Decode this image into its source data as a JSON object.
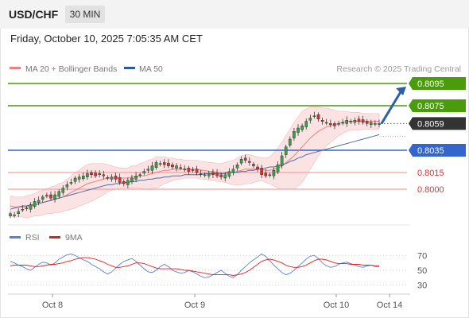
{
  "header": {
    "symbol": "USD/CHF",
    "interval": "30 MIN",
    "datetime": "Friday, October 10, 2025 7:05:35 AM CET"
  },
  "legend": {
    "items": [
      {
        "label": "MA 20 + Bollinger Bands",
        "color": "#f08080"
      },
      {
        "label": "MA 50",
        "color": "#2a5b9a"
      }
    ],
    "credit": "Research © 2025 Trading Central"
  },
  "rsi_legend": {
    "items": [
      {
        "label": "RSI",
        "color": "#5b7fd6"
      },
      {
        "label": "9MA",
        "color": "#e02020"
      }
    ]
  },
  "colors": {
    "resistance": "#4a9c0a",
    "support": "#3366cc",
    "target_support": "#e03030",
    "last_price": "#333333",
    "arrow": "#2d5fa8"
  },
  "chart_data": [
    {
      "type": "candlestick",
      "title": "",
      "x_ticks": [
        "Oct 8",
        "Oct 9",
        "Oct 10",
        "Oct 14"
      ],
      "ylim": [
        0.7975,
        0.81
      ],
      "series": [
        {
          "name": "MA 20 + Bollinger Bands"
        },
        {
          "name": "MA 50"
        }
      ],
      "close": [
        0.7978,
        0.7977,
        0.798,
        0.7982,
        0.7983,
        0.7986,
        0.7989,
        0.799,
        0.7993,
        0.7994,
        0.7992,
        0.7995,
        0.7998,
        0.8001,
        0.8004,
        0.8006,
        0.801,
        0.8011,
        0.8012,
        0.8014,
        0.8013,
        0.8012,
        0.8014,
        0.8012,
        0.801,
        0.8011,
        0.8009,
        0.8006,
        0.8005,
        0.8008,
        0.801,
        0.8012,
        0.8013,
        0.8016,
        0.8018,
        0.8021,
        0.8024,
        0.8023,
        0.8022,
        0.8021,
        0.802,
        0.8021,
        0.8019,
        0.8018,
        0.8016,
        0.8017,
        0.8015,
        0.8014,
        0.8013,
        0.8014,
        0.8013,
        0.8012,
        0.8011,
        0.8013,
        0.8016,
        0.8018,
        0.8022,
        0.8027,
        0.8026,
        0.8024,
        0.8021,
        0.8018,
        0.8013,
        0.8012,
        0.8013,
        0.8017,
        0.8022,
        0.803,
        0.8038,
        0.8045,
        0.8052,
        0.8055,
        0.8057,
        0.8061,
        0.8064,
        0.8066,
        0.8063,
        0.8061,
        0.806,
        0.8058,
        0.8057,
        0.8059,
        0.806,
        0.8062,
        0.8061,
        0.8062,
        0.8061,
        0.806,
        0.8059,
        0.806,
        0.8059,
        0.8059
      ],
      "ma20": [
        0.7985,
        0.7984,
        0.7984,
        0.7984,
        0.7984,
        0.7985,
        0.7986,
        0.7987,
        0.7988,
        0.7989,
        0.799,
        0.7991,
        0.7992,
        0.7993,
        0.7995,
        0.7997,
        0.7999,
        0.8001,
        0.8003,
        0.8005,
        0.8006,
        0.8007,
        0.8008,
        0.8009,
        0.801,
        0.801,
        0.801,
        0.801,
        0.801,
        0.801,
        0.8011,
        0.8011,
        0.8012,
        0.8012,
        0.8013,
        0.8014,
        0.8015,
        0.8016,
        0.8017,
        0.8017,
        0.8018,
        0.8018,
        0.8018,
        0.8018,
        0.8018,
        0.8018,
        0.8018,
        0.8017,
        0.8017,
        0.8016,
        0.8016,
        0.8015,
        0.8015,
        0.8015,
        0.8015,
        0.8015,
        0.8016,
        0.8017,
        0.8018,
        0.8018,
        0.8018,
        0.8018,
        0.8018,
        0.8017,
        0.8017,
        0.8018,
        0.8019,
        0.8021,
        0.8024,
        0.8027,
        0.803,
        0.8034,
        0.8038,
        0.8042,
        0.8046,
        0.8049,
        0.8052,
        0.8054,
        0.8056,
        0.8057,
        0.8058,
        0.8059,
        0.806,
        0.8061,
        0.8061,
        0.8061,
        0.8061,
        0.8061,
        0.8061,
        0.8061,
        0.8061,
        0.8061
      ],
      "ma50": [
        0.7982,
        0.7983,
        0.7984,
        0.7985,
        0.7985,
        0.7986,
        0.7986,
        0.7987,
        0.7988,
        0.7989,
        0.799,
        0.7991,
        0.7992,
        0.7993,
        0.7994,
        0.7995,
        0.7996,
        0.7997,
        0.7998,
        0.7999,
        0.8,
        0.8001,
        0.8002,
        0.8003,
        0.8004,
        0.8004,
        0.8005,
        0.8005,
        0.8006,
        0.8006,
        0.8007,
        0.8007,
        0.8008,
        0.8008,
        0.8009,
        0.8009,
        0.801,
        0.801,
        0.8011,
        0.8011,
        0.8012,
        0.8012,
        0.8012,
        0.8013,
        0.8013,
        0.8013,
        0.8013,
        0.8013,
        0.8014,
        0.8014,
        0.8014,
        0.8014,
        0.8014,
        0.8014,
        0.8015,
        0.8015,
        0.8015,
        0.8016,
        0.8016,
        0.8017,
        0.8017,
        0.8018,
        0.8018,
        0.8019,
        0.802,
        0.802,
        0.8021,
        0.8022,
        0.8023,
        0.8025,
        0.8026,
        0.8028,
        0.8029,
        0.8031,
        0.8032,
        0.8033,
        0.8034,
        0.8035,
        0.8036,
        0.8037,
        0.8038,
        0.8039,
        0.804,
        0.8041,
        0.8042,
        0.8043,
        0.8044,
        0.8045,
        0.8046,
        0.8047,
        0.8048,
        0.8049
      ],
      "band_width": [
        0.0009,
        0.0009,
        0.0009,
        0.0009,
        0.001,
        0.001,
        0.001,
        0.0011,
        0.0011,
        0.0011,
        0.0012,
        0.0012,
        0.0013,
        0.0013,
        0.0014,
        0.0015,
        0.0016,
        0.0016,
        0.0017,
        0.0017,
        0.0017,
        0.0016,
        0.0015,
        0.0014,
        0.0012,
        0.0011,
        0.001,
        0.0009,
        0.0009,
        0.0009,
        0.001,
        0.001,
        0.0011,
        0.0012,
        0.0013,
        0.0013,
        0.0014,
        0.0013,
        0.0012,
        0.0011,
        0.001,
        0.0009,
        0.0009,
        0.0008,
        0.0008,
        0.0008,
        0.0008,
        0.0008,
        0.0008,
        0.0008,
        0.0008,
        0.0008,
        0.0008,
        0.0009,
        0.001,
        0.0011,
        0.0012,
        0.0013,
        0.0013,
        0.0013,
        0.0012,
        0.0011,
        0.001,
        0.0011,
        0.0012,
        0.0015,
        0.0018,
        0.0021,
        0.0024,
        0.0027,
        0.003,
        0.0031,
        0.0032,
        0.003,
        0.0028,
        0.0025,
        0.0022,
        0.0019,
        0.0017,
        0.0015,
        0.0013,
        0.0011,
        0.001,
        0.0009,
        0.0008,
        0.0008,
        0.0008,
        0.0007,
        0.0007,
        0.0007,
        0.0007,
        0.0007
      ],
      "levels": [
        {
          "value": 0.8095,
          "label": "0.8095",
          "kind": "resistance"
        },
        {
          "value": 0.8075,
          "label": "0.8075",
          "kind": "resistance"
        },
        {
          "value": 0.8059,
          "label": "0.8059",
          "kind": "last_price"
        },
        {
          "value": 0.8035,
          "label": "0.8035",
          "kind": "pivot"
        },
        {
          "value": 0.8015,
          "label": "0.8015",
          "kind": "support"
        },
        {
          "value": 0.8,
          "label": "0.8000",
          "kind": "support"
        }
      ],
      "target_arrow": {
        "from": 0.8059,
        "to": 0.8095
      }
    },
    {
      "type": "line",
      "title": "",
      "y_ticks": [
        70,
        50,
        30
      ],
      "ylim": [
        20,
        80
      ],
      "series": [
        {
          "name": "RSI",
          "values": [
            62,
            60,
            57,
            55,
            52,
            50,
            54,
            58,
            61,
            60,
            57,
            60,
            65,
            68,
            71,
            72,
            70,
            67,
            64,
            62,
            58,
            55,
            52,
            48,
            45,
            48,
            53,
            58,
            62,
            64,
            66,
            62,
            57,
            52,
            48,
            47,
            50,
            55,
            58,
            55,
            50,
            48,
            46,
            47,
            50,
            48,
            45,
            42,
            40,
            41,
            44,
            47,
            50,
            46,
            42,
            40,
            44,
            50,
            55,
            60,
            64,
            68,
            72,
            69,
            63,
            57,
            52,
            47,
            44,
            46,
            50,
            55,
            60,
            65,
            69,
            70,
            66,
            60,
            56,
            54,
            55,
            58,
            60,
            61,
            59,
            57,
            55,
            54,
            56,
            57,
            55,
            55
          ]
        },
        {
          "name": "9MA",
          "values": [
            56,
            57,
            57,
            57,
            57,
            56,
            55,
            55,
            56,
            57,
            58,
            58,
            59,
            60,
            62,
            63,
            65,
            66,
            67,
            67,
            66,
            65,
            63,
            61,
            58,
            56,
            54,
            54,
            55,
            56,
            58,
            60,
            60,
            59,
            57,
            55,
            53,
            52,
            52,
            52,
            52,
            52,
            51,
            50,
            50,
            49,
            48,
            47,
            46,
            45,
            44,
            44,
            44,
            44,
            44,
            43,
            44,
            45,
            47,
            50,
            54,
            58,
            62,
            64,
            65,
            64,
            62,
            60,
            57,
            55,
            54,
            54,
            55,
            57,
            60,
            63,
            65,
            65,
            64,
            62,
            60,
            59,
            59,
            59,
            58,
            58,
            58,
            57,
            57,
            57,
            56,
            56
          ]
        }
      ]
    }
  ]
}
